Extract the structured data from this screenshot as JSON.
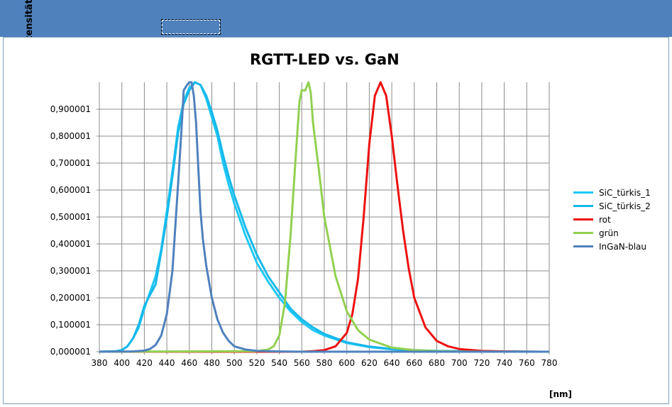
{
  "chart_data": {
    "type": "line",
    "title": "RGTT-LED vs. GaN",
    "xlabel": "[nm]",
    "ylabel": "rel. Intensität",
    "xlim": [
      380,
      780
    ],
    "ylim": [
      0,
      1.0
    ],
    "x_ticks": [
      "380",
      "400",
      "420",
      "440",
      "460",
      "480",
      "500",
      "520",
      "540",
      "560",
      "580",
      "600",
      "620",
      "640",
      "660",
      "680",
      "700",
      "720",
      "740",
      "760",
      "780"
    ],
    "y_ticks": [
      "0,000001",
      "0,100001",
      "0,200001",
      "0,300001",
      "0,400001",
      "0,500001",
      "0,600001",
      "0,700001",
      "0,800001",
      "0,900001"
    ],
    "grid": true,
    "legend_position": "right",
    "series": [
      {
        "name": "SiC_türkis_1",
        "color": "#1ec8f5",
        "x": [
          380,
          395,
          400,
          405,
          410,
          415,
          420,
          425,
          430,
          435,
          440,
          445,
          450,
          455,
          460,
          465,
          470,
          475,
          480,
          485,
          490,
          495,
          500,
          510,
          520,
          530,
          540,
          550,
          560,
          570,
          580,
          600,
          620,
          640,
          660,
          680,
          700,
          720,
          740,
          760,
          780
        ],
        "y": [
          0.0,
          0.002,
          0.006,
          0.02,
          0.05,
          0.09,
          0.16,
          0.22,
          0.28,
          0.38,
          0.52,
          0.67,
          0.83,
          0.93,
          0.98,
          1.0,
          0.99,
          0.94,
          0.87,
          0.8,
          0.7,
          0.62,
          0.55,
          0.43,
          0.33,
          0.26,
          0.2,
          0.15,
          0.11,
          0.08,
          0.06,
          0.032,
          0.017,
          0.009,
          0.005,
          0.003,
          0.002,
          0.001,
          0.0005,
          0.0002,
          0.0
        ]
      },
      {
        "name": "SiC_türkis_2",
        "color": "#16b8ea",
        "x": [
          380,
          395,
          400,
          405,
          410,
          415,
          420,
          425,
          430,
          435,
          440,
          445,
          450,
          455,
          460,
          465,
          470,
          475,
          480,
          485,
          490,
          495,
          500,
          510,
          520,
          530,
          540,
          550,
          560,
          570,
          580,
          600,
          620,
          640,
          660,
          680,
          700,
          720,
          740,
          760,
          780
        ],
        "y": [
          0.0,
          0.002,
          0.006,
          0.02,
          0.05,
          0.1,
          0.17,
          0.21,
          0.25,
          0.37,
          0.5,
          0.65,
          0.81,
          0.92,
          0.97,
          1.0,
          0.99,
          0.95,
          0.89,
          0.82,
          0.73,
          0.65,
          0.58,
          0.46,
          0.36,
          0.28,
          0.22,
          0.16,
          0.12,
          0.09,
          0.066,
          0.035,
          0.019,
          0.01,
          0.006,
          0.003,
          0.002,
          0.001,
          0.0005,
          0.0002,
          0.0
        ]
      },
      {
        "name": "rot",
        "color": "#ee1111",
        "x": [
          380,
          560,
          570,
          580,
          590,
          600,
          605,
          610,
          615,
          620,
          625,
          630,
          635,
          640,
          645,
          650,
          655,
          660,
          670,
          680,
          690,
          700,
          720,
          740,
          760,
          780
        ],
        "y": [
          0.0,
          0.0,
          0.002,
          0.006,
          0.02,
          0.07,
          0.14,
          0.27,
          0.5,
          0.77,
          0.95,
          1.0,
          0.95,
          0.8,
          0.62,
          0.45,
          0.31,
          0.2,
          0.09,
          0.04,
          0.02,
          0.01,
          0.003,
          0.001,
          0.0003,
          0.0
        ]
      },
      {
        "name": "grün",
        "color": "#92d050",
        "x": [
          380,
          520,
          530,
          535,
          540,
          545,
          550,
          555,
          558,
          560,
          563,
          566,
          568,
          570,
          575,
          580,
          590,
          600,
          610,
          620,
          640,
          660,
          680,
          700,
          720,
          740,
          760,
          780
        ],
        "y": [
          0.0,
          0.002,
          0.008,
          0.02,
          0.06,
          0.18,
          0.43,
          0.75,
          0.93,
          0.97,
          0.97,
          1.0,
          0.96,
          0.85,
          0.68,
          0.5,
          0.28,
          0.15,
          0.08,
          0.045,
          0.015,
          0.006,
          0.002,
          0.0008,
          0.0003,
          0.0001,
          0.0,
          0.0
        ]
      },
      {
        "name": "InGaN-blau",
        "color": "#4f81bd",
        "x": [
          380,
          410,
          420,
          425,
          430,
          435,
          440,
          445,
          450,
          453,
          455,
          458,
          460,
          462,
          464,
          466,
          468,
          470,
          472,
          475,
          480,
          485,
          490,
          495,
          500,
          510,
          520,
          540,
          560,
          600,
          640,
          680,
          720,
          780
        ],
        "y": [
          0.0,
          0.001,
          0.004,
          0.01,
          0.025,
          0.06,
          0.14,
          0.3,
          0.62,
          0.82,
          0.97,
          0.99,
          1.0,
          1.0,
          0.95,
          0.85,
          0.68,
          0.52,
          0.42,
          0.32,
          0.2,
          0.12,
          0.07,
          0.04,
          0.02,
          0.008,
          0.003,
          0.001,
          0.0,
          0.0,
          0.0,
          0.0,
          0.0,
          0.0
        ]
      }
    ]
  }
}
